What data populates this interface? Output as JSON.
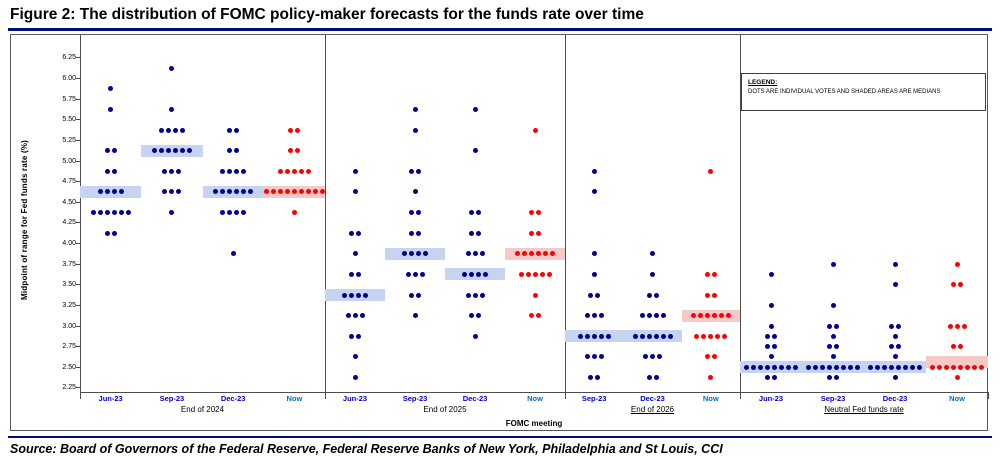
{
  "title": "Figure 2: The distribution of FOMC policy-maker forecasts for the funds rate over time",
  "source": "Source: Board of Governors of the Federal Reserve, Federal Reserve Banks of New York, Philadelphia and St Louis, CCI",
  "legend": {
    "title": "LEGEND:",
    "body": "DOTS ARE INDIVIDUAL VOTES AND SHADED AREAS ARE MEDIANS"
  },
  "chart_data": {
    "type": "scatter",
    "title": "Figure 2: The distribution of FOMC policy-maker forecasts for the funds rate over time",
    "xlabel": "FOMC meeting",
    "ylabel": "Midpoint of range for Fed funds rate (%)",
    "ylim": [
      2.125,
      6.375
    ],
    "yticks": [
      6.25,
      6.0,
      5.75,
      5.5,
      5.25,
      5.0,
      4.75,
      4.5,
      4.25,
      4.0,
      3.75,
      3.5,
      3.25,
      3.0,
      2.75,
      2.5,
      2.25
    ],
    "grid": false,
    "legend_position": "top-right",
    "colors": {
      "dot_historical": "#00008B",
      "dot_now": "#FF0000",
      "median_historical": "#C6D4F1",
      "median_now": "#F6C8C8",
      "month_label": "#0000CC",
      "now_label": "#0070C0",
      "accent_rule": "#001078",
      "frame_border": "#595959"
    },
    "panels": [
      {
        "caption": "End of 2024",
        "underline": false,
        "columns": [
          {
            "label": "Jun-23",
            "now": false,
            "median": 4.625,
            "dots": [
              [
                5.875,
                1
              ],
              [
                5.625,
                1
              ],
              [
                5.125,
                2
              ],
              [
                4.875,
                2
              ],
              [
                4.625,
                4
              ],
              [
                4.375,
                6
              ],
              [
                4.125,
                2
              ]
            ]
          },
          {
            "label": "Sep-23",
            "now": false,
            "median": 5.125,
            "dots": [
              [
                6.125,
                1
              ],
              [
                5.625,
                1
              ],
              [
                5.375,
                4
              ],
              [
                5.125,
                6
              ],
              [
                4.875,
                3
              ],
              [
                4.625,
                3
              ],
              [
                4.375,
                1
              ]
            ]
          },
          {
            "label": "Dec-23",
            "now": false,
            "median": 4.625,
            "dots": [
              [
                5.375,
                2
              ],
              [
                5.125,
                2
              ],
              [
                4.875,
                4
              ],
              [
                4.625,
                6
              ],
              [
                4.375,
                4
              ],
              [
                3.875,
                1
              ]
            ]
          },
          {
            "label": "Now",
            "now": true,
            "median": 4.625,
            "dots": [
              [
                5.375,
                2
              ],
              [
                5.125,
                2
              ],
              [
                4.875,
                5
              ],
              [
                4.625,
                9
              ],
              [
                4.375,
                1
              ]
            ]
          }
        ]
      },
      {
        "caption": "End of 2025",
        "underline": false,
        "columns": [
          {
            "label": "Jun-23",
            "now": false,
            "median": 3.375,
            "dots": [
              [
                4.875,
                1
              ],
              [
                4.625,
                1
              ],
              [
                4.125,
                2
              ],
              [
                3.875,
                1
              ],
              [
                3.625,
                2
              ],
              [
                3.375,
                4
              ],
              [
                3.125,
                3
              ],
              [
                2.875,
                2
              ],
              [
                2.625,
                1
              ],
              [
                2.375,
                1
              ]
            ]
          },
          {
            "label": "Sep-23",
            "now": false,
            "median": 3.875,
            "dots": [
              [
                5.625,
                1
              ],
              [
                5.375,
                1
              ],
              [
                4.875,
                2
              ],
              [
                4.625,
                1
              ],
              [
                4.375,
                2
              ],
              [
                4.125,
                2
              ],
              [
                3.875,
                4
              ],
              [
                3.625,
                3
              ],
              [
                3.375,
                2
              ],
              [
                3.125,
                1
              ]
            ]
          },
          {
            "label": "Dec-23",
            "now": false,
            "median": 3.625,
            "dots": [
              [
                5.625,
                1
              ],
              [
                5.125,
                1
              ],
              [
                4.375,
                2
              ],
              [
                4.125,
                2
              ],
              [
                3.875,
                3
              ],
              [
                3.625,
                4
              ],
              [
                3.375,
                3
              ],
              [
                3.125,
                2
              ],
              [
                2.875,
                1
              ]
            ]
          },
          {
            "label": "Now",
            "now": true,
            "median": 3.875,
            "dots": [
              [
                5.375,
                1
              ],
              [
                4.375,
                2
              ],
              [
                4.125,
                2
              ],
              [
                3.875,
                6
              ],
              [
                3.625,
                5
              ],
              [
                3.375,
                1
              ],
              [
                3.125,
                2
              ]
            ]
          }
        ]
      },
      {
        "caption": "End of 2026",
        "underline": true,
        "columns": [
          {
            "label": "Sep-23",
            "now": false,
            "median": 2.875,
            "dots": [
              [
                4.875,
                1
              ],
              [
                4.625,
                1
              ],
              [
                3.875,
                1
              ],
              [
                3.625,
                1
              ],
              [
                3.375,
                2
              ],
              [
                3.125,
                3
              ],
              [
                2.875,
                5
              ],
              [
                2.625,
                3
              ],
              [
                2.375,
                2
              ]
            ]
          },
          {
            "label": "Dec-23",
            "now": false,
            "median": 2.875,
            "dots": [
              [
                3.875,
                1
              ],
              [
                3.625,
                1
              ],
              [
                3.375,
                2
              ],
              [
                3.125,
                4
              ],
              [
                2.875,
                6
              ],
              [
                2.625,
                3
              ],
              [
                2.375,
                2
              ]
            ]
          },
          {
            "label": "Now",
            "now": true,
            "median": 3.125,
            "dots": [
              [
                4.875,
                1
              ],
              [
                3.625,
                2
              ],
              [
                3.375,
                2
              ],
              [
                3.125,
                6
              ],
              [
                2.875,
                5
              ],
              [
                2.625,
                2
              ],
              [
                2.375,
                1
              ]
            ]
          }
        ]
      },
      {
        "caption": "Neutral Fed funds rate",
        "underline": true,
        "columns": [
          {
            "label": "Jun-23",
            "now": false,
            "median": 2.5,
            "dots": [
              [
                3.625,
                1
              ],
              [
                3.25,
                1
              ],
              [
                3.0,
                1
              ],
              [
                2.875,
                2
              ],
              [
                2.75,
                2
              ],
              [
                2.625,
                1
              ],
              [
                2.5,
                8
              ],
              [
                2.375,
                2
              ]
            ]
          },
          {
            "label": "Sep-23",
            "now": false,
            "median": 2.5,
            "dots": [
              [
                3.75,
                1
              ],
              [
                3.25,
                1
              ],
              [
                3.0,
                2
              ],
              [
                2.875,
                1
              ],
              [
                2.75,
                2
              ],
              [
                2.625,
                1
              ],
              [
                2.5,
                8
              ],
              [
                2.375,
                2
              ]
            ]
          },
          {
            "label": "Dec-23",
            "now": false,
            "median": 2.5,
            "dots": [
              [
                3.75,
                1
              ],
              [
                3.5,
                1
              ],
              [
                3.0,
                2
              ],
              [
                2.875,
                1
              ],
              [
                2.75,
                2
              ],
              [
                2.625,
                1
              ],
              [
                2.5,
                8
              ],
              [
                2.375,
                1
              ]
            ]
          },
          {
            "label": "Now",
            "now": true,
            "median": 2.5625,
            "dots": [
              [
                3.75,
                1
              ],
              [
                3.5,
                2
              ],
              [
                3.0,
                3
              ],
              [
                2.75,
                2
              ],
              [
                2.5,
                8
              ],
              [
                2.375,
                1
              ]
            ]
          }
        ]
      }
    ]
  }
}
